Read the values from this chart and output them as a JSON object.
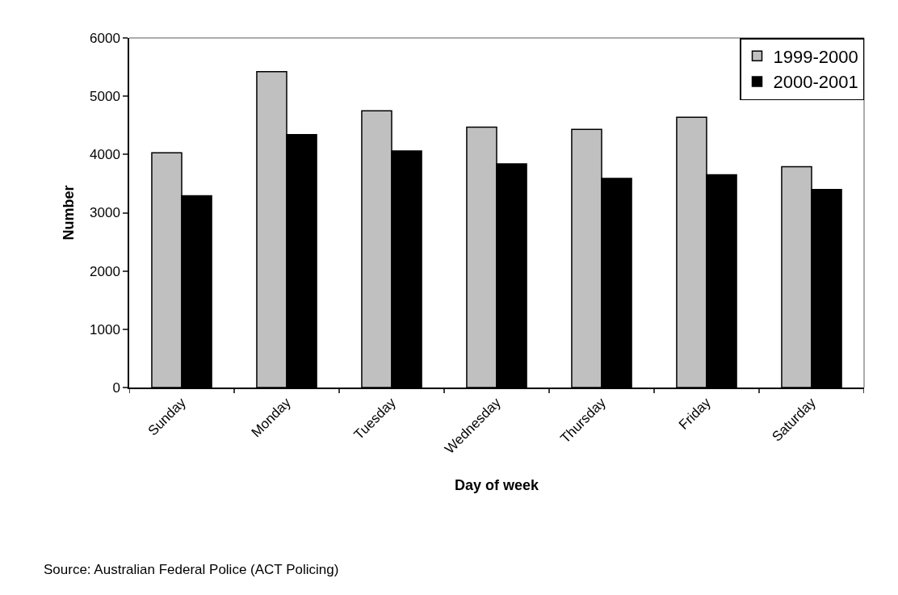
{
  "chart_data": {
    "type": "bar",
    "xlabel": "Day of week",
    "ylabel": "Number",
    "categories": [
      "Sunday",
      "Monday",
      "Tuesday",
      "Wednesday",
      "Thursday",
      "Friday",
      "Saturday"
    ],
    "series": [
      {
        "name": "1999-2000",
        "color": "#c0c0c0",
        "values": [
          4030,
          5420,
          4750,
          4470,
          4430,
          4640,
          3790
        ]
      },
      {
        "name": "2000-2001",
        "color": "#000000",
        "values": [
          3290,
          4340,
          4060,
          3840,
          3590,
          3650,
          3400
        ]
      }
    ],
    "ylim": [
      0,
      6000
    ],
    "yticks": [
      0,
      1000,
      2000,
      3000,
      4000,
      5000,
      6000
    ],
    "legend": "top right",
    "annotations": [
      "Source: Australian Federal Police (ACT Policing)"
    ]
  }
}
